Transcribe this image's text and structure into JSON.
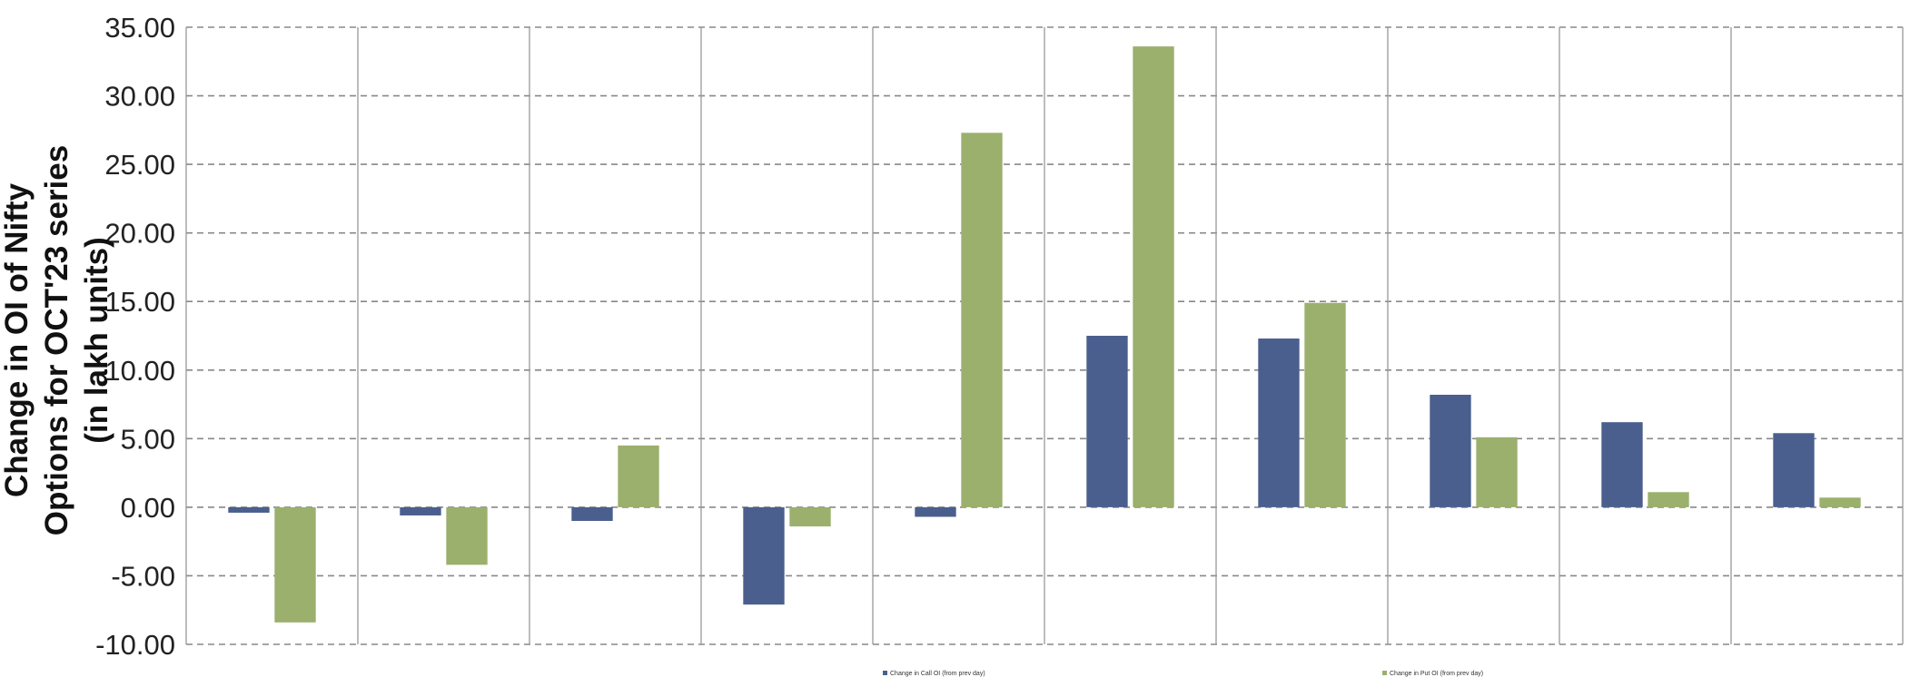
{
  "chart_data": {
    "type": "bar",
    "title": "",
    "xlabel": "",
    "ylabel_lines": [
      "Change in OI of Nifty",
      "Options for OCT'23 series",
      "(in lakh units)"
    ],
    "ylim": [
      -10,
      35
    ],
    "yticks": [
      35,
      30,
      25,
      20,
      15,
      10,
      5,
      0,
      -5,
      -10
    ],
    "ytick_labels": [
      "35.00",
      "30.00",
      "25.00",
      "20.00",
      "15.00",
      "10.00",
      "5.00",
      "0.00",
      "-5.00",
      "-10.00"
    ],
    "categories": [
      "",
      "",
      "",
      "",
      "",
      "",
      "",
      "",
      "",
      ""
    ],
    "series": [
      {
        "name": "Change in Call OI (from prev day)",
        "color": "#4a5f8e",
        "values": [
          -0.4,
          -0.6,
          -1.0,
          -7.1,
          -0.7,
          12.5,
          12.3,
          8.2,
          6.2,
          5.4
        ]
      },
      {
        "name": "Change in Put OI (from prev day)",
        "color": "#9bb06d",
        "values": [
          -8.4,
          -4.2,
          4.5,
          -1.4,
          27.3,
          33.6,
          14.9,
          5.1,
          1.1,
          0.7
        ]
      }
    ],
    "grid": true,
    "legend": "bottom"
  }
}
